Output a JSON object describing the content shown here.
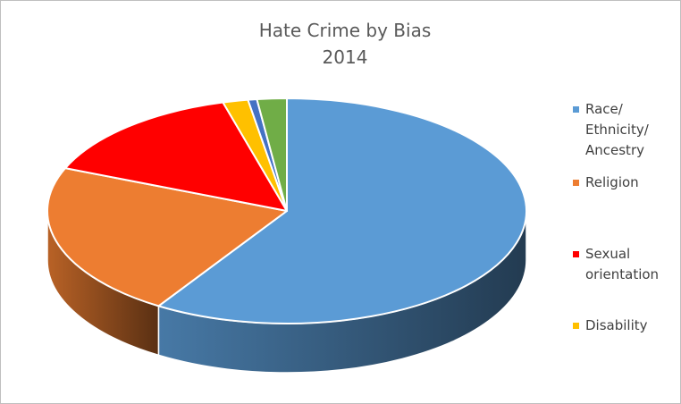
{
  "chart_data": {
    "type": "pie",
    "title": "Hate Crime by Bias",
    "subtitle": "2014",
    "three_d": true,
    "legend_position": "right",
    "slices": [
      {
        "label": "Race/ Ethnicity/ Ancestry",
        "value": 59.0,
        "color": "#5b9bd5"
      },
      {
        "label": "Religion",
        "value": 22.2,
        "color": "#ed7d31"
      },
      {
        "label": "Sexual orientation",
        "value": 14.5,
        "color": "#ff0000"
      },
      {
        "label": "Disability",
        "value": 1.7,
        "color": "#ffc000"
      },
      {
        "label": "",
        "value": 0.6,
        "color": "#4472c4"
      },
      {
        "label": "",
        "value": 2.0,
        "color": "#70ad47"
      }
    ],
    "legend": [
      {
        "label_lines": [
          "Race/",
          "Ethnicity/",
          "Ancestry"
        ],
        "color": "#5b9bd5"
      },
      {
        "label_lines": [
          "Religion"
        ],
        "color": "#ed7d31"
      },
      {
        "label_lines": [
          "Sexual",
          "orientation"
        ],
        "color": "#ff0000"
      },
      {
        "label_lines": [
          "Disability"
        ],
        "color": "#ffc000"
      }
    ]
  }
}
